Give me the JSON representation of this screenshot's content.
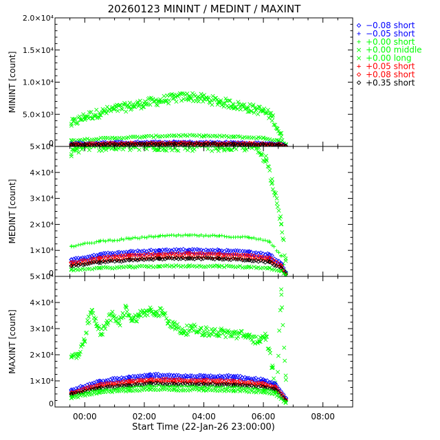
{
  "chart_data": {
    "type": "scatter",
    "title": "20260123 MININT / MEDINT / MAXINT",
    "xlabel": "Start Time (22-Jan-26 23:00:00)",
    "x_ticks": [
      {
        "hour": 1,
        "label": "00:00"
      },
      {
        "hour": 3,
        "label": "02:00"
      },
      {
        "hour": 5,
        "label": "04:00"
      },
      {
        "hour": 7,
        "label": "06:00"
      },
      {
        "hour": 9,
        "label": "08:00"
      }
    ],
    "xlim_hours": [
      0,
      10
    ],
    "legend": [
      {
        "key": "m008s",
        "label": "−0.08 short",
        "symbol": "diamond",
        "color": "#0000ff"
      },
      {
        "key": "m005s",
        "label": "−0.05 short",
        "symbol": "plus",
        "color": "#0000ff"
      },
      {
        "key": "z000s",
        "label": "+0.00 short",
        "symbol": "plus",
        "color": "#00ff00"
      },
      {
        "key": "z000m",
        "label": "+0.00 middle",
        "symbol": "cross",
        "color": "#00ff00"
      },
      {
        "key": "z000l",
        "label": "+0.00 long",
        "symbol": "cross",
        "color": "#00ff00"
      },
      {
        "key": "p005s",
        "label": "+0.05 short",
        "symbol": "plus",
        "color": "#ff0000"
      },
      {
        "key": "p008s",
        "label": "+0.08 short",
        "symbol": "diamond",
        "color": "#ff0000"
      },
      {
        "key": "p035s",
        "label": "+0.35 short",
        "symbol": "diamond",
        "color": "#000000"
      }
    ],
    "panels": [
      {
        "name": "minint",
        "ylabel": "MININT [count]",
        "ylim": [
          0,
          20000
        ],
        "y_ticks": [
          {
            "value": 0,
            "label": "0"
          },
          {
            "value": 5000,
            "label": "5.0×10³"
          },
          {
            "value": 10000,
            "label": "1.0×10⁴"
          },
          {
            "value": 15000,
            "label": "1.5×10⁴"
          },
          {
            "value": 20000,
            "label": "2.0×10⁴"
          }
        ],
        "series": [
          {
            "key": "z000m",
            "x": [
              0.55,
              1,
              1.5,
              2,
              2.5,
              3,
              3.5,
              4,
              4.5,
              5,
              5.5,
              6,
              6.5,
              7,
              7.3,
              7.6,
              7.75
            ],
            "y": [
              3500,
              4600,
              5200,
              5800,
              6200,
              6700,
              7100,
              7500,
              7800,
              7400,
              7000,
              6500,
              6000,
              5500,
              4600,
              1500,
              300
            ]
          },
          {
            "key": "z000l",
            "x": [
              0.55,
              1,
              2,
              3,
              4,
              5,
              6,
              7,
              7.5,
              7.75
            ],
            "y": [
              900,
              1100,
              1300,
              1500,
              1700,
              1650,
              1500,
              1300,
              900,
              200
            ]
          },
          {
            "key": "z000s",
            "x": [
              0.55,
              1.5,
              3,
              4.5,
              6,
              7,
              7.75
            ],
            "y": [
              150,
              250,
              350,
              400,
              380,
              300,
              80
            ]
          },
          {
            "key": "m008s",
            "x": [
              0.55,
              2,
              4,
              6,
              7.5,
              7.75
            ],
            "y": [
              450,
              600,
              650,
              600,
              400,
              100
            ]
          },
          {
            "key": "m005s",
            "x": [
              0.55,
              2,
              4,
              6,
              7.5,
              7.75
            ],
            "y": [
              300,
              420,
              480,
              430,
              280,
              70
            ]
          },
          {
            "key": "p005s",
            "x": [
              0.55,
              2,
              4,
              6,
              7.5,
              7.75
            ],
            "y": [
              280,
              380,
              430,
              400,
              260,
              60
            ]
          },
          {
            "key": "p008s",
            "x": [
              0.55,
              2,
              4,
              6,
              7.5,
              7.75
            ],
            "y": [
              330,
              450,
              500,
              460,
              300,
              70
            ]
          },
          {
            "key": "p035s",
            "x": [
              0.55,
              2,
              4,
              6,
              7.5,
              7.75
            ],
            "y": [
              220,
              300,
              350,
              320,
              200,
              50
            ]
          }
        ]
      },
      {
        "name": "medint",
        "ylabel": "MEDINT [count]",
        "ylim": [
          0,
          50000
        ],
        "y_ticks": [
          {
            "value": 0,
            "label": "0"
          },
          {
            "value": 10000,
            "label": "1×10⁴"
          },
          {
            "value": 20000,
            "label": "2×10⁴"
          },
          {
            "value": 30000,
            "label": "3×10⁴"
          },
          {
            "value": 40000,
            "label": "4×10⁴"
          },
          {
            "value": 50000,
            "label": "5×10⁴"
          }
        ],
        "series": [
          {
            "key": "z000m",
            "x": [
              0.55,
              0.75,
              0.95,
              1.3,
              6.7,
              7.1,
              7.3,
              7.45,
              7.6,
              7.75
            ],
            "y": [
              47000,
              49000,
              50000,
              50000,
              50000,
              45000,
              36000,
              30000,
              20000,
              6000
            ]
          },
          {
            "key": "z000s",
            "x": [
              0.55,
              1.5,
              2.5,
              3.5,
              4.5,
              5.5,
              6.5,
              7.2,
              7.6,
              7.75
            ],
            "y": [
              11500,
              13500,
              14500,
              15500,
              15800,
              15500,
              15000,
              13500,
              8000,
              2000
            ]
          },
          {
            "key": "m008s",
            "x": [
              0.55,
              1.5,
              2.5,
              3.5,
              4.5,
              5.5,
              6.5,
              7.2,
              7.6,
              7.75
            ],
            "y": [
              6500,
              8500,
              9500,
              10000,
              10200,
              10000,
              9500,
              8500,
              5000,
              1500
            ]
          },
          {
            "key": "m005s",
            "x": [
              0.55,
              1.5,
              2.5,
              3.5,
              4.5,
              5.5,
              6.5,
              7.2,
              7.6,
              7.75
            ],
            "y": [
              5500,
              7500,
              8300,
              8800,
              9000,
              8800,
              8300,
              7300,
              4300,
              1200
            ]
          },
          {
            "key": "p008s",
            "x": [
              0.55,
              1.5,
              2.5,
              3.5,
              4.5,
              5.5,
              6.5,
              7.2,
              7.6,
              7.75
            ],
            "y": [
              5200,
              7000,
              8000,
              8500,
              8700,
              8500,
              8000,
              7000,
              4000,
              1100
            ]
          },
          {
            "key": "p005s",
            "x": [
              0.55,
              1.5,
              2.5,
              3.5,
              4.5,
              5.5,
              6.5,
              7.2,
              7.6,
              7.75
            ],
            "y": [
              4300,
              6000,
              6800,
              7200,
              7400,
              7200,
              6800,
              6000,
              3500,
              900
            ]
          },
          {
            "key": "p035s",
            "x": [
              0.55,
              1.5,
              2.5,
              3.5,
              4.5,
              5.5,
              6.5,
              7.2,
              7.6,
              7.75
            ],
            "y": [
              4000,
              5500,
              6200,
              6800,
              7000,
              6800,
              6300,
              5500,
              3200,
              800
            ]
          },
          {
            "key": "z000l",
            "x": [
              0.55,
              1.5,
              2.5,
              3.5,
              4.5,
              5.5,
              6.5,
              7.2,
              7.6,
              7.75
            ],
            "y": [
              2500,
              3200,
              3600,
              3900,
              4000,
              3900,
              3600,
              3200,
              2000,
              500
            ]
          }
        ]
      },
      {
        "name": "maxint",
        "ylabel": "MAXINT [count]",
        "ylim": [
          0,
          50000
        ],
        "y_ticks": [
          {
            "value": 0,
            "label": "0"
          },
          {
            "value": 10000,
            "label": "1×10⁴"
          },
          {
            "value": 20000,
            "label": "2×10⁴"
          },
          {
            "value": 30000,
            "label": "3×10⁴"
          },
          {
            "value": 40000,
            "label": "4×10⁴"
          },
          {
            "value": 50000,
            "label": "5×10⁴"
          }
        ],
        "series": [
          {
            "key": "z000m",
            "x": [
              0.55,
              0.8,
              1.0,
              1.1,
              1.25,
              1.4,
              1.55,
              1.75,
              1.95,
              2.15,
              2.4,
              2.6,
              2.8,
              3.0,
              3.2,
              3.4,
              3.6,
              3.8,
              4.0,
              4.3,
              4.6,
              5,
              5.5,
              6,
              6.5,
              6.9,
              7.1,
              7.3,
              7.45,
              7.6,
              7.75
            ],
            "y": [
              19000,
              20000,
              25000,
              32000,
              37000,
              31000,
              28000,
              33000,
              35000,
              32000,
              38000,
              33000,
              35000,
              36000,
              37000,
              35000,
              37000,
              33000,
              31000,
              29000,
              30000,
              29000,
              28500,
              28000,
              27000,
              25000,
              27000,
              15000,
              6000,
              45000,
              12000
            ]
          },
          {
            "key": "m008s",
            "x": [
              0.55,
              1.5,
              2.5,
              3.2,
              4,
              5,
              6,
              7,
              7.4,
              7.75
            ],
            "y": [
              6500,
              10000,
              11500,
              12500,
              12000,
              12000,
              11800,
              10500,
              9000,
              3500
            ]
          },
          {
            "key": "m005s",
            "x": [
              0.55,
              1.5,
              2.5,
              3.2,
              4,
              5,
              6,
              7,
              7.4,
              7.75
            ],
            "y": [
              6000,
              9000,
              10500,
              11500,
              11000,
              11000,
              10800,
              9800,
              8300,
              3000
            ]
          },
          {
            "key": "p008s",
            "x": [
              0.55,
              1.5,
              2.5,
              3.2,
              4,
              5,
              6,
              7,
              7.4,
              7.75
            ],
            "y": [
              5500,
              8500,
              9800,
              10500,
              10300,
              10200,
              10000,
              9000,
              7800,
              2800
            ]
          },
          {
            "key": "p005s",
            "x": [
              0.55,
              1.5,
              2.5,
              3.2,
              4,
              5,
              6,
              7,
              7.4,
              7.75
            ],
            "y": [
              5000,
              7800,
              9000,
              9800,
              9500,
              9400,
              9200,
              8300,
              7200,
              2500
            ]
          },
          {
            "key": "p035s",
            "x": [
              0.55,
              1.5,
              2.5,
              3.2,
              4,
              5,
              6,
              7,
              7.4,
              7.75
            ],
            "y": [
              4800,
              7200,
              8300,
              9000,
              8800,
              8700,
              8500,
              7700,
              6600,
              2200
            ]
          },
          {
            "key": "z000s",
            "x": [
              0.55,
              1.5,
              2.5,
              3.2,
              4,
              5,
              6,
              7,
              7.4,
              7.75
            ],
            "y": [
              4200,
              6500,
              7400,
              8000,
              7800,
              7700,
              7500,
              6800,
              5800,
              2000
            ]
          },
          {
            "key": "z000l",
            "x": [
              0.55,
              1.5,
              2.5,
              3.2,
              4,
              5,
              6,
              7,
              7.4,
              7.75
            ],
            "y": [
              3500,
              5500,
              6300,
              6800,
              6600,
              6500,
              6300,
              5700,
              4900,
              1600
            ]
          }
        ]
      }
    ]
  }
}
